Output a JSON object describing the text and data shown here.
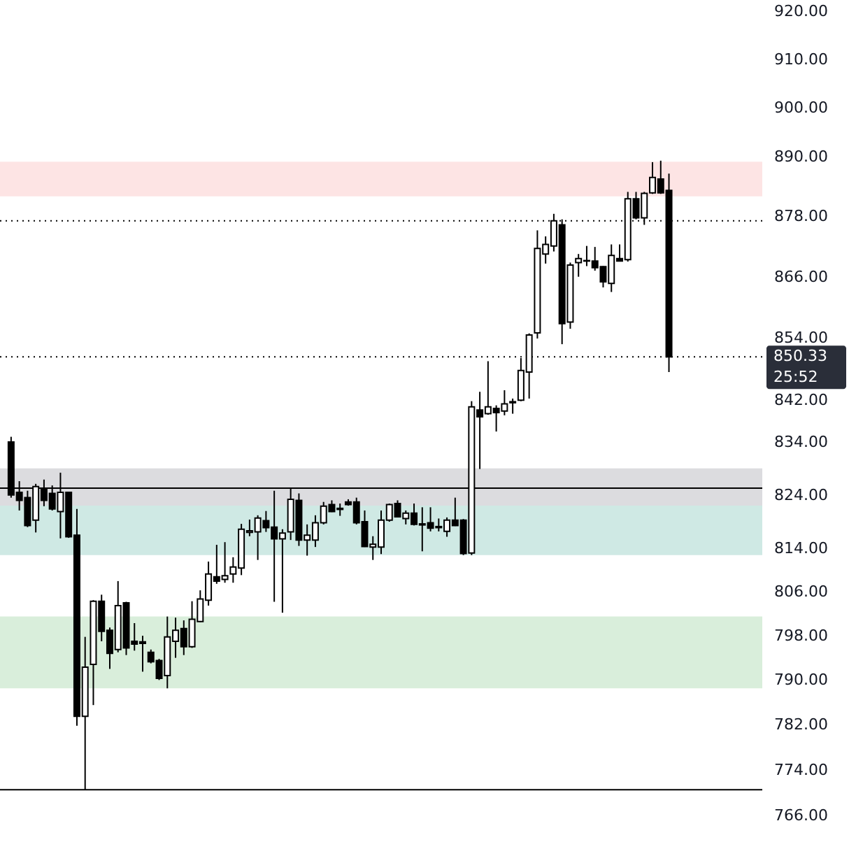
{
  "chart_data": {
    "type": "candlestick",
    "log": true,
    "grid": false,
    "categories": [
      null,
      null,
      null,
      null,
      null,
      null,
      null,
      null,
      null,
      null,
      null,
      null,
      null,
      null,
      null,
      null,
      null,
      null,
      null,
      null,
      null,
      null,
      null,
      null,
      null,
      null,
      null,
      null,
      null,
      null,
      null,
      null,
      null,
      null,
      null,
      null,
      null,
      null,
      null,
      null,
      null,
      null,
      null,
      null,
      null,
      null,
      null,
      null,
      null,
      null,
      null,
      null,
      null,
      null,
      null,
      null,
      null,
      null,
      null,
      null,
      null,
      null,
      null,
      null,
      null,
      null,
      null,
      null,
      null,
      null,
      null,
      null,
      null,
      null,
      null,
      null,
      null,
      null,
      null,
      null,
      null,
      null,
      null,
      null,
      null,
      null,
      null,
      null,
      null,
      null,
      null
    ],
    "ohlc": [
      [
        834,
        835,
        823.5,
        824
      ],
      [
        824.5,
        826.6,
        821.1,
        823
      ],
      [
        823.5,
        824.8,
        818,
        818.3
      ],
      [
        819.3,
        826.1,
        817,
        825.6
      ],
      [
        825.3,
        826.9,
        821.9,
        823
      ],
      [
        824.3,
        825.8,
        821.1,
        821.4
      ],
      [
        820.9,
        828.2,
        815.9,
        824.5
      ],
      [
        824.5,
        824.6,
        816,
        816.2
      ],
      [
        816.5,
        821.4,
        781.8,
        783.5
      ],
      [
        783.5,
        797.8,
        770.5,
        792.3
      ],
      [
        792.8,
        804.5,
        785.5,
        804.3
      ],
      [
        804.3,
        805.5,
        797,
        798.8
      ],
      [
        799,
        799.5,
        792,
        794.8
      ],
      [
        795.5,
        808,
        795,
        803.5
      ],
      [
        804,
        804.2,
        794.5,
        795.8
      ],
      [
        797,
        800.3,
        795.3,
        796.5
      ],
      [
        796.9,
        798,
        791.5,
        796.6
      ],
      [
        795,
        795.5,
        793,
        793.3
      ],
      [
        793.5,
        793.8,
        790,
        790.3
      ],
      [
        790.8,
        801.5,
        788.5,
        797.8
      ],
      [
        797,
        801.3,
        794,
        799
      ],
      [
        799.3,
        800.8,
        794.5,
        796
      ],
      [
        796,
        804.3,
        795.8,
        801
      ],
      [
        800.6,
        806.3,
        800.5,
        804.7
      ],
      [
        804.5,
        811.6,
        803.5,
        809.3
      ],
      [
        808.8,
        814.7,
        807.5,
        808
      ],
      [
        808.3,
        815.2,
        807.7,
        809
      ],
      [
        809.3,
        812.4,
        807.7,
        810.6
      ],
      [
        810.4,
        818.6,
        809.1,
        817.6
      ],
      [
        817,
        819.4,
        816.3,
        817.3
      ],
      [
        817.1,
        820.2,
        811.9,
        819.7
      ],
      [
        819.2,
        821,
        817.1,
        817.9
      ],
      [
        818,
        824.8,
        804.2,
        815.8
      ],
      [
        815.8,
        817.6,
        802.2,
        816.9
      ],
      [
        817.1,
        825.3,
        815.6,
        823.2
      ],
      [
        823,
        824.3,
        814.5,
        815.6
      ],
      [
        815.6,
        818.5,
        812.7,
        816.5
      ],
      [
        815.6,
        820.2,
        814.3,
        818.8
      ],
      [
        818.8,
        822.7,
        818.5,
        821.9
      ],
      [
        822.2,
        823,
        820.8,
        820.9
      ],
      [
        821.3,
        822.4,
        820.1,
        821.5
      ],
      [
        822.7,
        823.2,
        822,
        822.2
      ],
      [
        822.7,
        823.5,
        818.5,
        818.8
      ],
      [
        819,
        821.1,
        814.3,
        814.4
      ],
      [
        814.3,
        816.3,
        811.9,
        814.8
      ],
      [
        814.3,
        821.1,
        813,
        819.3
      ],
      [
        819.3,
        822.4,
        819,
        822.2
      ],
      [
        822.4,
        823,
        819.8,
        819.9
      ],
      [
        819.6,
        821.1,
        818.5,
        820.6
      ],
      [
        820.6,
        822.4,
        818.3,
        818.5
      ],
      [
        818.6,
        821.7,
        813.5,
        818.4
      ],
      [
        818.8,
        821.7,
        817.2,
        817.8
      ],
      [
        818.1,
        819.6,
        817.2,
        817.9
      ],
      [
        817.2,
        819.8,
        816.2,
        819.3
      ],
      [
        819.3,
        823.5,
        818.2,
        818.3
      ],
      [
        819.3,
        819.5,
        812.8,
        813.1
      ],
      [
        813.2,
        841.8,
        812.8,
        840.7
      ],
      [
        840.1,
        843.6,
        828.9,
        838.8
      ],
      [
        839.4,
        849.5,
        839.2,
        840.7
      ],
      [
        840.4,
        841,
        836,
        839.6
      ],
      [
        839.9,
        843.9,
        839.1,
        841.3
      ],
      [
        841.5,
        842.3,
        839.4,
        841.7
      ],
      [
        842,
        850.1,
        841.8,
        847.7
      ],
      [
        847.4,
        854.9,
        842.3,
        854.6
      ],
      [
        855,
        875.2,
        853.9,
        871.6
      ],
      [
        870.5,
        874,
        868.6,
        872.4
      ],
      [
        872.1,
        878.5,
        871,
        877.1
      ],
      [
        876.3,
        877.4,
        852.8,
        856.8
      ],
      [
        857.1,
        868.8,
        855.8,
        868.3
      ],
      [
        868.8,
        870.5,
        866,
        869.6
      ],
      [
        869.1,
        872.1,
        868.1,
        869.2
      ],
      [
        869.1,
        871.9,
        867.2,
        867.8
      ],
      [
        868,
        868.1,
        863.9,
        865
      ],
      [
        864.7,
        872.4,
        863,
        870.2
      ],
      [
        869.6,
        872.4,
        869,
        869.1
      ],
      [
        869.4,
        882.9,
        869,
        881.5
      ],
      [
        881.5,
        882.9,
        877.4,
        877.7
      ],
      [
        877.7,
        882.9,
        876.3,
        882.6
      ],
      [
        882.7,
        888.9,
        882.5,
        885.8
      ],
      [
        885.5,
        889.2,
        882.5,
        882.7
      ],
      [
        883.2,
        886.6,
        847.4,
        850.33
      ],
      null,
      null,
      null,
      null,
      null,
      null,
      null,
      null,
      null,
      null
    ],
    "ylim": [
      766,
      920
    ],
    "yticks": [
      {
        "value": 766,
        "label": "766.00"
      },
      {
        "value": 774,
        "label": "774.00"
      },
      {
        "value": 782,
        "label": "782.00"
      },
      {
        "value": 790,
        "label": "790.00"
      },
      {
        "value": 798,
        "label": "798.00"
      },
      {
        "value": 806,
        "label": "806.00"
      },
      {
        "value": 814,
        "label": "814.00"
      },
      {
        "value": 824,
        "label": "824.00"
      },
      {
        "value": 834,
        "label": "834.00"
      },
      {
        "value": 842,
        "label": "842.00"
      },
      {
        "value": 854,
        "label": "854.00"
      },
      {
        "value": 866,
        "label": "866.00"
      },
      {
        "value": 878,
        "label": "878.00"
      },
      {
        "value": 890,
        "label": "890.00"
      },
      {
        "value": 900,
        "label": "900.00"
      },
      {
        "value": 910,
        "label": "910.00"
      },
      {
        "value": 920,
        "label": "920.00"
      }
    ],
    "bands": [
      {
        "axis": "y",
        "from": 788.5,
        "to": 801.5,
        "color": "#d9eedb"
      },
      {
        "axis": "y",
        "from": 822,
        "to": 829,
        "color": "#dcdcdf"
      },
      {
        "axis": "y",
        "from": 812.8,
        "to": 822,
        "color": "#cfe9e4"
      },
      {
        "axis": "y",
        "from": 882,
        "to": 889,
        "color": "#fde4e4"
      }
    ],
    "ref_lines": [
      {
        "axis": "y",
        "value": 825.3,
        "color": "#000000",
        "line_style": "solid"
      },
      {
        "axis": "y",
        "value": 770.5,
        "color": "#000000",
        "line_style": "solid"
      },
      {
        "axis": "y",
        "value": 877.1,
        "color": "#000000",
        "line_style": "dotted"
      },
      {
        "axis": "y",
        "value": 850.33,
        "color": "#000000",
        "line_style": "dotted",
        "label": "850.33"
      }
    ],
    "annotations": [
      "25:52"
    ]
  }
}
